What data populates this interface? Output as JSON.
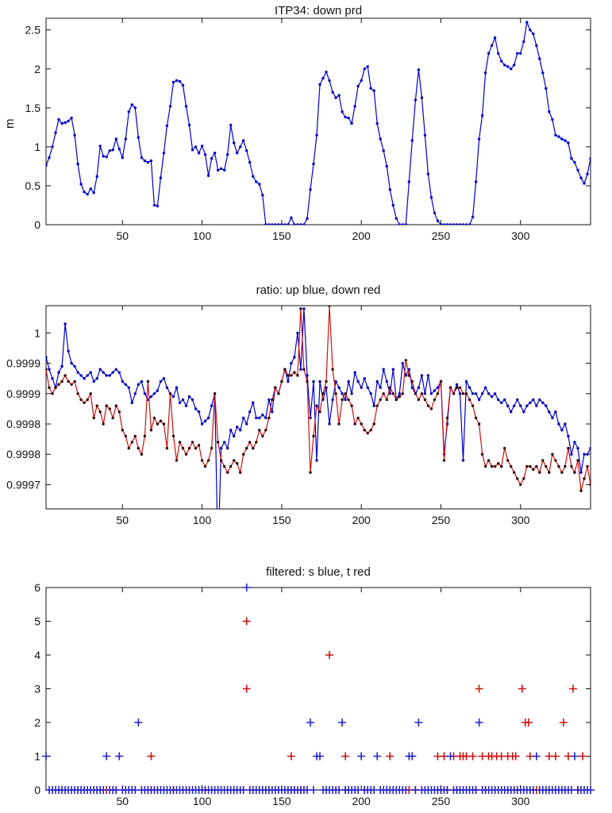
{
  "figure": {
    "background": "#ffffff"
  },
  "colors": {
    "blue": "#0000CC",
    "red": "#CC1111",
    "dark_marker": "#330000",
    "axis": "#111111"
  },
  "chart_data": [
    {
      "type": "line",
      "title": "ITP34: down prd",
      "ylabel": "m",
      "xlabel": "",
      "xlim": [
        2,
        344
      ],
      "ylim": [
        0,
        2.65
      ],
      "grid": false,
      "legend": "none",
      "xticks": [
        50,
        100,
        150,
        200,
        250,
        300
      ],
      "yticks": [
        0,
        0.5,
        1,
        1.5,
        2,
        2.5
      ],
      "ytick_labels": [
        "0",
        "0.5",
        "1",
        "1.5",
        "2",
        "2.5"
      ],
      "x_range": {
        "from": 2,
        "to": 344,
        "step": 2
      },
      "series": [
        {
          "name": "down prd",
          "color": "#0000CC",
          "marker": "dot",
          "y": [
            0.76,
            0.86,
            1.0,
            1.18,
            1.35,
            1.3,
            1.31,
            1.33,
            1.37,
            1.15,
            0.78,
            0.52,
            0.42,
            0.39,
            0.46,
            0.41,
            0.62,
            1.01,
            0.88,
            0.87,
            0.95,
            0.96,
            1.1,
            0.97,
            0.86,
            1.1,
            1.45,
            1.54,
            1.5,
            1.12,
            0.86,
            0.82,
            0.8,
            0.82,
            0.25,
            0.24,
            0.6,
            0.92,
            1.27,
            1.52,
            1.83,
            1.85,
            1.84,
            1.79,
            1.52,
            1.28,
            0.96,
            1.0,
            0.92,
            1.01,
            0.9,
            0.63,
            0.85,
            0.92,
            0.7,
            0.72,
            0.7,
            0.9,
            1.28,
            1.05,
            0.92,
            1.0,
            1.08,
            0.95,
            0.8,
            0.62,
            0.55,
            0.52,
            0.38,
            0,
            0,
            0,
            0,
            0,
            0,
            0,
            0,
            0.09,
            0,
            0,
            0,
            0,
            0.08,
            0.45,
            0.78,
            1.15,
            1.8,
            1.88,
            1.96,
            1.85,
            1.7,
            1.63,
            1.66,
            1.45,
            1.38,
            1.37,
            1.3,
            1.52,
            1.78,
            1.85,
            2.0,
            2.03,
            1.75,
            1.72,
            1.3,
            1.1,
            0.95,
            0.75,
            0.45,
            0.25,
            0.08,
            0,
            0,
            0,
            0.55,
            1.08,
            1.6,
            1.99,
            1.63,
            1.15,
            0.65,
            0.35,
            0.15,
            0.05,
            0,
            0,
            0,
            0,
            0,
            0,
            0,
            0,
            0,
            0,
            0.1,
            0.55,
            1.1,
            1.4,
            1.95,
            2.2,
            2.3,
            2.4,
            2.2,
            2.1,
            2.05,
            2.03,
            2.0,
            2.05,
            2.2,
            2.2,
            2.35,
            2.6,
            2.5,
            2.45,
            2.3,
            2.13,
            1.95,
            1.75,
            1.45,
            1.35,
            1.15,
            1.13,
            1.1,
            1.08,
            1.05,
            0.85,
            0.8,
            0.7,
            0.6,
            0.53,
            0.65,
            0.85
          ]
        }
      ]
    },
    {
      "type": "line",
      "title": "ratio: up blue, down red",
      "ylabel": "",
      "xlabel": "",
      "xlim": [
        2,
        344
      ],
      "ylim": [
        0.99971,
        1.000045
      ],
      "grid": false,
      "legend": "none",
      "xticks": [
        50,
        100,
        150,
        200,
        250,
        300
      ],
      "yticks": [
        1.0,
        0.99995,
        0.9999,
        0.99985,
        0.9998,
        0.99975
      ],
      "ytick_labels": [
        "1",
        "0.9999",
        "0.9999",
        "0.9998",
        "0.9998",
        "0.9997"
      ],
      "x_range": {
        "from": 2,
        "to": 344,
        "step": 2
      },
      "series": [
        {
          "name": "up",
          "color": "#0000CC",
          "marker": "dot",
          "marker_color": "#0000BB",
          "y": [
            0.99996,
            0.99994,
            0.999925,
            0.99991,
            0.999935,
            0.999945,
            1.000015,
            0.99997,
            0.99995,
            0.999945,
            0.999935,
            0.99993,
            0.999925,
            0.99993,
            0.999935,
            0.99992,
            0.999925,
            0.99994,
            0.999935,
            0.99993,
            0.99993,
            0.999935,
            0.99994,
            0.999935,
            0.99992,
            0.999915,
            0.99991,
            0.999885,
            0.9999,
            0.999915,
            0.99992,
            0.9999,
            0.99989,
            0.999895,
            0.9999,
            0.999905,
            0.99992,
            0.999925,
            0.99991,
            0.9999,
            0.999895,
            0.99991,
            0.999885,
            0.99989,
            0.99988,
            0.999895,
            0.99989,
            0.999875,
            0.99987,
            0.99985,
            0.999855,
            0.99986,
            0.99988,
            0.9999,
            0.99963,
            0.99981,
            0.99982,
            0.99981,
            0.99984,
            0.99983,
            0.999845,
            0.99984,
            0.99986,
            0.99985,
            0.99987,
            0.999885,
            0.99986,
            0.99986,
            0.999865,
            0.99986,
            0.99989,
            0.99987,
            0.99991,
            0.9999,
            0.99992,
            0.99994,
            0.99992,
            0.99995,
            0.99996,
            1.0,
            0.99994,
            1.00004,
            0.99993,
            0.99986,
            0.99992,
            0.99979,
            0.99992,
            0.99989,
            0.99991,
            0.99985,
            0.99989,
            0.99992,
            0.99991,
            0.9999,
            0.99989,
            0.99992,
            0.9999,
            0.999935,
            0.99992,
            0.99991,
            0.999925,
            0.99991,
            0.9999,
            0.99988,
            0.99992,
            0.99991,
            0.99994,
            0.99992,
            0.9999,
            0.99994,
            0.99989,
            0.9999,
            0.99995,
            0.99993,
            0.99994,
            0.99991,
            0.9999,
            0.99991,
            0.99993,
            0.9999,
            0.99993,
            0.9999,
            0.999905,
            0.99991,
            0.99992,
            0.9998,
            0.99985,
            0.99991,
            0.9999,
            0.999915,
            0.9999,
            0.99979,
            0.99992,
            0.99991,
            0.9999,
            0.9999,
            0.99989,
            0.9999,
            0.99991,
            0.9999,
            0.999895,
            0.9999,
            0.99989,
            0.999885,
            0.99989,
            0.99988,
            0.99987,
            0.99988,
            0.99989,
            0.99988,
            0.99987,
            0.99988,
            0.999885,
            0.99989,
            0.99988,
            0.99989,
            0.999885,
            0.99988,
            0.99987,
            0.99986,
            0.99987,
            0.99985,
            0.99984,
            0.99985,
            0.99983,
            0.9998,
            0.99982,
            0.99981,
            0.99977,
            0.9998,
            0.9998,
            0.99981
          ]
        },
        {
          "name": "down",
          "color": "#CC1111",
          "marker": "dot",
          "marker_color": "#330000",
          "y": [
            0.99994,
            0.99991,
            0.9999,
            0.99991,
            0.999915,
            0.99992,
            0.99993,
            0.99992,
            0.999915,
            0.99992,
            0.9999,
            0.99989,
            0.999885,
            0.99989,
            0.9999,
            0.99986,
            0.99988,
            0.99987,
            0.99985,
            0.99988,
            0.999875,
            0.99986,
            0.99988,
            0.99987,
            0.99984,
            0.99983,
            0.99981,
            0.99982,
            0.99983,
            0.99981,
            0.9998,
            0.99983,
            0.99992,
            0.99984,
            0.99986,
            0.99985,
            0.999855,
            0.99985,
            0.99981,
            0.9999,
            0.99983,
            0.99979,
            0.99982,
            0.99981,
            0.9998,
            0.99981,
            0.99982,
            0.99981,
            0.999815,
            0.99979,
            0.99978,
            0.99979,
            0.99981,
            0.9999,
            0.99982,
            0.99979,
            0.99978,
            0.99977,
            0.99978,
            0.99979,
            0.999785,
            0.99977,
            0.9998,
            0.99981,
            0.99982,
            0.99981,
            0.99982,
            0.99984,
            0.99983,
            0.99984,
            0.99986,
            0.99989,
            0.99991,
            0.9999,
            0.99992,
            0.99994,
            0.99993,
            0.99993,
            0.999935,
            0.99993,
            1.00004,
            0.99994,
            0.99992,
            0.99977,
            0.99983,
            0.99988,
            0.99987,
            0.9999,
            0.99992,
            1.000045,
            0.99994,
            0.9999,
            0.99985,
            0.99989,
            0.9999,
            0.99989,
            0.99988,
            0.99985,
            0.99986,
            0.99985,
            0.99984,
            0.999835,
            0.99984,
            0.99985,
            0.99988,
            0.99989,
            0.9999,
            0.99989,
            0.99991,
            0.9999,
            0.99989,
            0.999895,
            0.9999,
            0.999955,
            0.99993,
            0.99992,
            0.9999,
            0.99989,
            0.9999,
            0.99989,
            0.99988,
            0.999875,
            0.99989,
            0.9999,
            0.99992,
            0.99979,
            0.99986,
            0.99991,
            0.9999,
            0.99991,
            0.99991,
            0.9999,
            0.9999,
            0.99989,
            0.99988,
            0.99986,
            0.99985,
            0.9998,
            0.99978,
            0.99979,
            0.99978,
            0.99978,
            0.999785,
            0.99978,
            0.99981,
            0.99979,
            0.99978,
            0.99977,
            0.99976,
            0.99975,
            0.99976,
            0.99978,
            0.99978,
            0.999775,
            0.99978,
            0.99977,
            0.99979,
            0.99978,
            0.99977,
            0.9998,
            0.99979,
            0.99978,
            0.99977,
            0.99978,
            0.99981,
            0.99978,
            0.99977,
            0.99979,
            0.99974,
            0.99976,
            0.99978,
            0.99975
          ]
        }
      ]
    },
    {
      "type": "scatter",
      "title": "filtered: s blue, t red",
      "ylabel": "",
      "xlabel": "",
      "xlim": [
        2,
        344
      ],
      "ylim": [
        0,
        6
      ],
      "grid": false,
      "legend": "none",
      "xticks": [
        50,
        100,
        150,
        200,
        250,
        300
      ],
      "yticks": [
        0,
        1,
        2,
        3,
        4,
        5,
        6
      ],
      "ytick_labels": [
        "0",
        "1",
        "2",
        "3",
        "4",
        "5",
        "6"
      ],
      "series": [
        {
          "name": "t (red)",
          "color": "#CC1111",
          "marker": "plus",
          "points": [
            [
              68,
              1
            ],
            [
              156,
              1
            ],
            [
              190,
              1
            ],
            [
              218,
              1
            ],
            [
              248,
              1
            ],
            [
              252,
              1
            ],
            [
              258,
              1
            ],
            [
              262,
              1
            ],
            [
              264,
              1
            ],
            [
              266,
              1
            ],
            [
              270,
              1
            ],
            [
              276,
              1
            ],
            [
              280,
              1
            ],
            [
              282,
              1
            ],
            [
              285,
              1
            ],
            [
              288,
              1
            ],
            [
              292,
              1
            ],
            [
              295,
              1
            ],
            [
              297,
              1
            ],
            [
              306,
              1
            ],
            [
              318,
              1
            ],
            [
              322,
              1
            ],
            [
              330,
              1
            ],
            [
              339,
              1
            ],
            [
              303,
              2
            ],
            [
              305,
              2
            ],
            [
              327,
              2
            ],
            [
              128,
              3
            ],
            [
              274,
              3
            ],
            [
              301,
              3
            ],
            [
              333,
              3
            ],
            [
              180,
              4
            ],
            [
              128,
              5
            ]
          ],
          "zeros_x": [
            40,
            46,
            68,
            82,
            102,
            156,
            158,
            162,
            190,
            202,
            230,
            234,
            250,
            254,
            260,
            272,
            278,
            298,
            310,
            336
          ]
        },
        {
          "name": "s (blue)",
          "color": "#2222CC",
          "marker": "plus",
          "points": [
            [
              2,
              1
            ],
            [
              40,
              1
            ],
            [
              48,
              1
            ],
            [
              172,
              1
            ],
            [
              174,
              1
            ],
            [
              200,
              1
            ],
            [
              210,
              1
            ],
            [
              230,
              1
            ],
            [
              232,
              1
            ],
            [
              256,
              1
            ],
            [
              310,
              1
            ],
            [
              334,
              1
            ],
            [
              60,
              2
            ],
            [
              168,
              2
            ],
            [
              188,
              2
            ],
            [
              236,
              2
            ],
            [
              274,
              2
            ],
            [
              128,
              6
            ]
          ],
          "zeros": {
            "from": 2,
            "to": 344,
            "step": 2,
            "except": [
              2,
              40,
              48,
              60,
              128,
              168,
              172,
              174,
              188,
              200,
              210,
              230,
              232,
              236,
              256,
              274,
              310,
              334
            ]
          }
        }
      ]
    }
  ]
}
